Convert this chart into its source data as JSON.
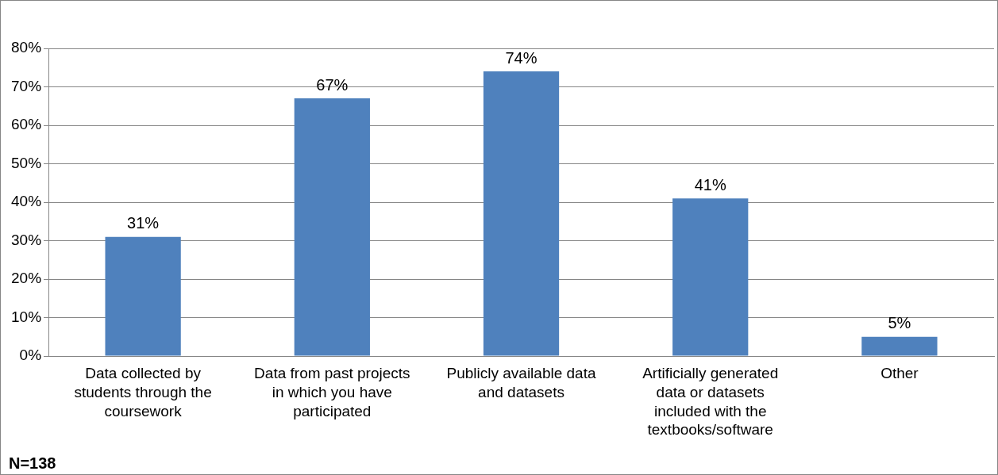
{
  "chart_data": {
    "type": "bar",
    "categories": [
      "Data collected by students through the coursework",
      "Data from past projects in which you have participated",
      "Publicly available data and datasets",
      "Artificially generated data or datasets included with the textbooks/software",
      "Other"
    ],
    "values": [
      31,
      67,
      74,
      41,
      5
    ],
    "value_labels": [
      "31%",
      "67%",
      "74%",
      "41%",
      "5%"
    ],
    "color": "#4f81bd",
    "ylim": [
      0,
      80
    ],
    "yticks": [
      {
        "value": 0,
        "label": "0%"
      },
      {
        "value": 10,
        "label": "10%"
      },
      {
        "value": 20,
        "label": "20%"
      },
      {
        "value": 30,
        "label": "30%"
      },
      {
        "value": 40,
        "label": "40%"
      },
      {
        "value": 50,
        "label": "50%"
      },
      {
        "value": 60,
        "label": "60%"
      },
      {
        "value": 70,
        "label": "70%"
      },
      {
        "value": 80,
        "label": "80%"
      }
    ],
    "grid": "y",
    "legend": false,
    "annotations": [
      "N=138"
    ]
  }
}
